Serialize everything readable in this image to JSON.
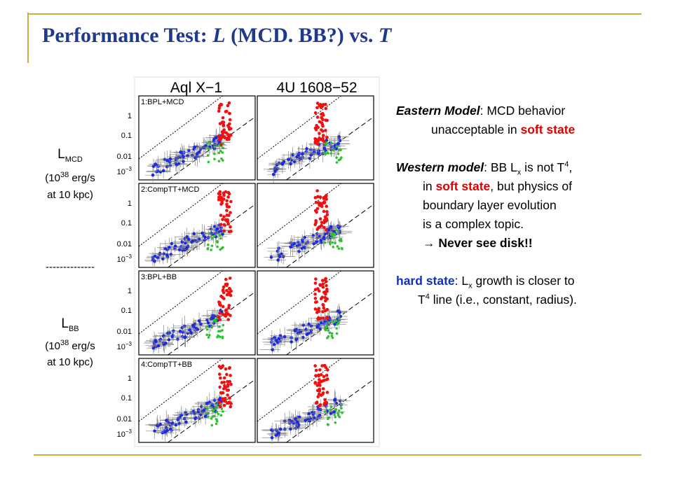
{
  "header": {
    "title": [
      "Performance Test: ",
      "L",
      " (MCD. BB?) vs. ",
      "T"
    ]
  },
  "figure": {
    "columns": [
      "Aql X−1",
      "4U 1608−52"
    ],
    "panels": [
      "1:BPL+MCD",
      "2:CompTT+MCD",
      "3:BPL+BB",
      "4:CompTT+BB"
    ],
    "yticks": [
      "1",
      "0.1",
      "0.01"
    ],
    "ytick_last": {
      "base": "10",
      "exp": "−3"
    }
  },
  "side": {
    "l_mcd": [
      "L",
      "MCD"
    ],
    "units_mcd": [
      "(10",
      "38",
      " erg/s"
    ],
    "dist_mcd": "at 10 kpc)",
    "divider": "--------------",
    "l_bb": [
      "L",
      "BB"
    ],
    "units_bb": [
      "(10",
      "38",
      " erg/s"
    ],
    "dist_bb": "at 10 kpc)"
  },
  "notes": [
    [
      "Eastern Model",
      ": MCD behavior"
    ],
    [
      "unacceptable in ",
      "soft state"
    ],
    [
      "Western model",
      ": BB L",
      "x",
      " is not T",
      "4",
      ","
    ],
    [
      "in ",
      "soft state",
      ", but physics of"
    ],
    [
      "boundary layer evolution"
    ],
    [
      "is a complex topic."
    ],
    [
      "→ Never see disk!!"
    ],
    [
      "hard state",
      ":  L",
      "x",
      " growth is closer to"
    ],
    [
      "T",
      "4",
      " line (i.e., constant, radius)."
    ]
  ]
}
